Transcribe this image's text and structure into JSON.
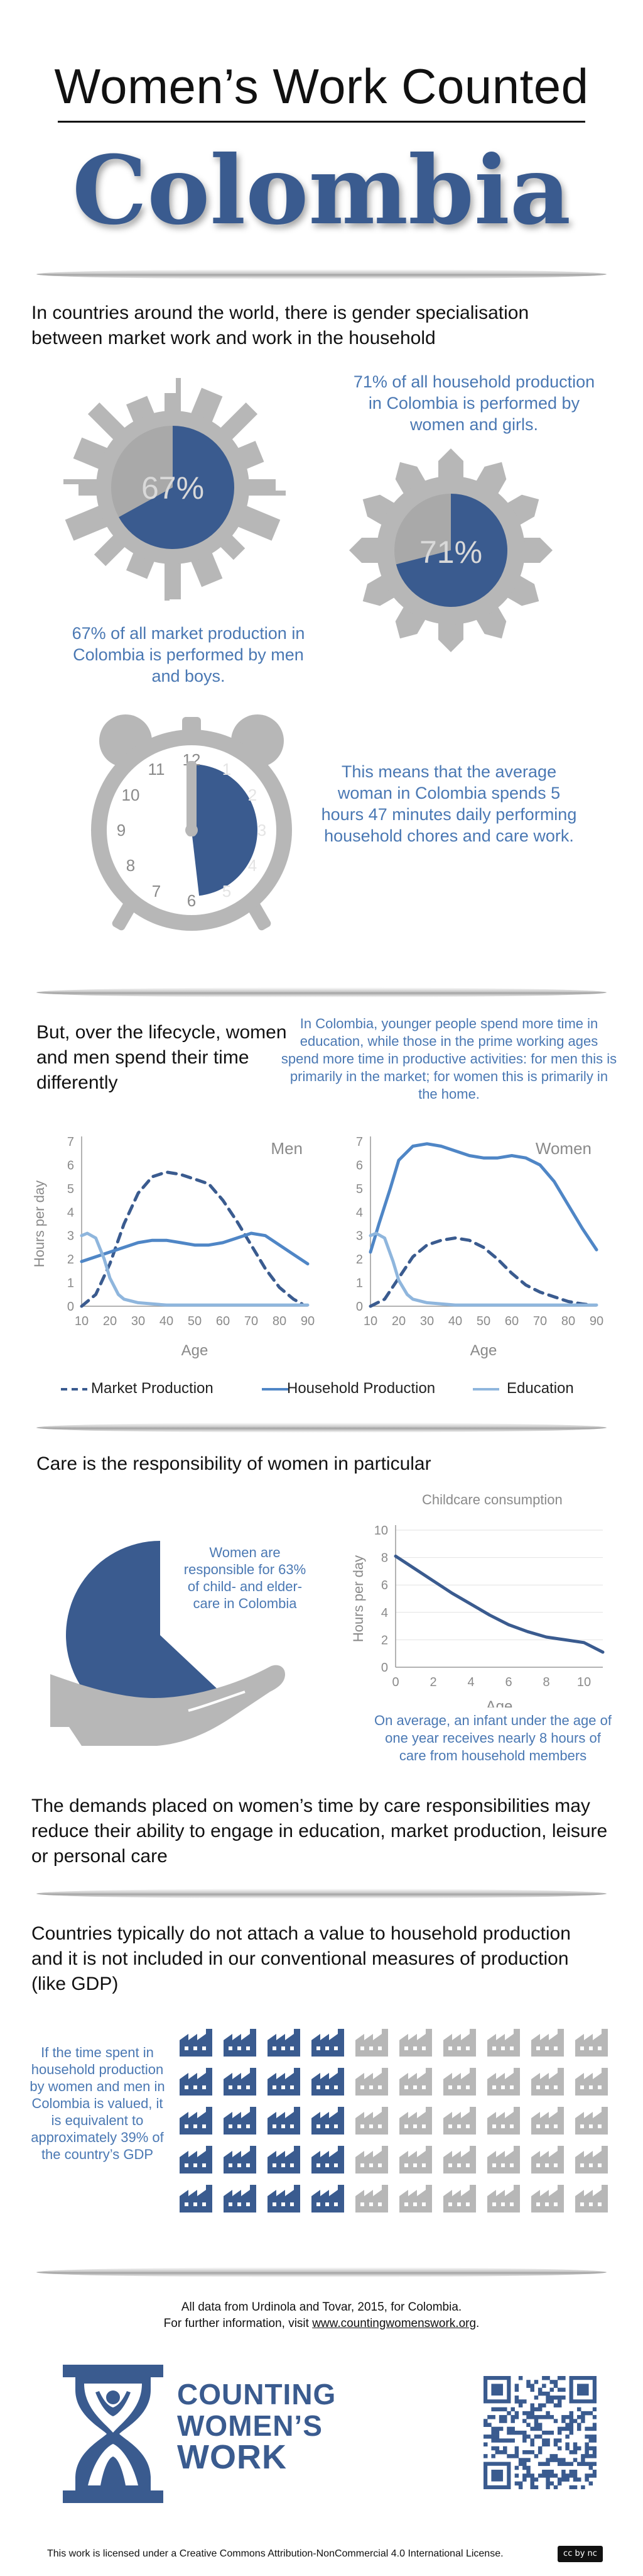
{
  "header": {
    "title": "Women’s Work Counted",
    "country": "Colombia"
  },
  "section1": {
    "intro": "In countries around the world, there is gender specialisation between market work and work in the household",
    "household_caption": "71% of all household production in Colombia is performed by women and girls.",
    "market_caption": "67% of all market production in Colombia is performed by men and boys.",
    "market_pct_label": "67%",
    "household_pct_label": "71%",
    "market_fraction": 0.67,
    "household_fraction": 0.71,
    "clock_caption": "This means that the average woman in Colombia spends 5 hours 47 minutes daily performing household chores and care work.",
    "clock_numbers": [
      "12",
      "1",
      "2",
      "3",
      "4",
      "5",
      "6",
      "7",
      "8",
      "9",
      "10",
      "11"
    ],
    "clock_hours_filled": 5.78
  },
  "section2": {
    "lead": "But, over the lifecycle, women and men spend their time differently",
    "note": "In Colombia, younger people spend more time in education, while those in the prime working ages spend more time in productive activities: for men this is primarily in the market; for women this is primarily in the home.",
    "legend": {
      "market": "Market Production",
      "household": "Household Production",
      "education": "Education"
    }
  },
  "section3": {
    "lead": "Care is the responsibility of women in particular",
    "care_caption": "Women are responsible for 63% of child- and elder-care in Colombia",
    "care_fraction": 0.63,
    "childcare_caption": "On average, an infant under the age of one year receives nearly 8 hours of care from household members",
    "demands": "The demands placed on women’s time by care responsibilities may reduce their ability to engage in education, market production, leisure or personal care"
  },
  "section4": {
    "lead": "Countries typically do not attach a value to household production and it is not included in our conventional measures of production (like GDP)",
    "gdp_caption": "If the time spent in household production by women and men in Colombia is valued, it is equivalent to approximately 39% of the country’s GDP",
    "gdp_fraction": 0.39,
    "icon_count": 50
  },
  "footer": {
    "source_line1": "All data from Urdinola and Tovar, 2015, for Colombia.",
    "source_line2_prefix": "For further information, visit ",
    "source_link": "www.countingwomenswork.org",
    "source_line2_suffix": ".",
    "logo_line1": "COUNTING",
    "logo_line2": "WOMEN’S",
    "logo_line3": "WORK",
    "license": "This work is licensed under a Creative Commons Attribution-NonCommercial 4.0 International License.",
    "cc_badge": "cc by nc"
  },
  "colors": {
    "blue": "#3a5b8f",
    "light_blue": "#4a78b3",
    "line_blue": "#4f86c6",
    "pale_blue": "#8fb6dd",
    "gray": "#b7b7b7"
  },
  "chart_data": [
    {
      "id": "men",
      "type": "line",
      "title": "Men",
      "xlabel": "Age",
      "ylabel": "Hours per day",
      "xlim": [
        10,
        90
      ],
      "ylim": [
        0,
        7
      ],
      "xticks": [
        10,
        20,
        30,
        40,
        50,
        60,
        70,
        80,
        90
      ],
      "yticks": [
        0,
        1,
        2,
        3,
        4,
        5,
        6,
        7
      ],
      "series": [
        {
          "name": "Market Production",
          "style": "dashed",
          "x": [
            10,
            15,
            20,
            25,
            30,
            35,
            40,
            45,
            50,
            55,
            60,
            65,
            70,
            75,
            80,
            85,
            88
          ],
          "y": [
            0,
            0.5,
            1.8,
            3.5,
            4.8,
            5.5,
            5.7,
            5.6,
            5.4,
            5.2,
            4.5,
            3.6,
            2.6,
            1.6,
            0.8,
            0.3,
            0.1
          ]
        },
        {
          "name": "Household Production",
          "style": "solid",
          "x": [
            10,
            15,
            20,
            25,
            30,
            35,
            40,
            45,
            50,
            55,
            60,
            65,
            70,
            75,
            80,
            85,
            90
          ],
          "y": [
            1.9,
            2.1,
            2.3,
            2.5,
            2.7,
            2.8,
            2.8,
            2.7,
            2.6,
            2.6,
            2.7,
            2.9,
            3.1,
            3.0,
            2.6,
            2.2,
            1.8
          ]
        },
        {
          "name": "Education",
          "style": "solid",
          "x": [
            10,
            12,
            15,
            18,
            20,
            23,
            25,
            30,
            35,
            40,
            50,
            60,
            70,
            80,
            90
          ],
          "y": [
            3.0,
            3.1,
            2.9,
            2.0,
            1.2,
            0.5,
            0.3,
            0.15,
            0.1,
            0.05,
            0.05,
            0.05,
            0.05,
            0.05,
            0.05
          ]
        }
      ]
    },
    {
      "id": "women",
      "type": "line",
      "title": "Women",
      "xlabel": "Age",
      "ylabel": "",
      "xlim": [
        10,
        90
      ],
      "ylim": [
        0,
        7
      ],
      "xticks": [
        10,
        20,
        30,
        40,
        50,
        60,
        70,
        80,
        90
      ],
      "yticks": [
        0,
        1,
        2,
        3,
        4,
        5,
        6,
        7
      ],
      "series": [
        {
          "name": "Market Production",
          "style": "dashed",
          "x": [
            10,
            15,
            20,
            25,
            30,
            35,
            40,
            45,
            50,
            55,
            60,
            65,
            70,
            75,
            80,
            85,
            88
          ],
          "y": [
            0,
            0.3,
            1.2,
            2.1,
            2.6,
            2.8,
            2.9,
            2.8,
            2.5,
            2.0,
            1.4,
            0.9,
            0.6,
            0.4,
            0.2,
            0.1,
            0.05
          ]
        },
        {
          "name": "Household Production",
          "style": "solid",
          "x": [
            10,
            13,
            17,
            20,
            25,
            30,
            35,
            40,
            45,
            50,
            55,
            60,
            65,
            70,
            75,
            80,
            85,
            90
          ],
          "y": [
            2.3,
            3.5,
            5.0,
            6.2,
            6.8,
            6.9,
            6.8,
            6.6,
            6.4,
            6.3,
            6.3,
            6.4,
            6.3,
            6.0,
            5.3,
            4.3,
            3.3,
            2.4
          ]
        },
        {
          "name": "Education",
          "style": "solid",
          "x": [
            10,
            12,
            15,
            18,
            20,
            23,
            25,
            30,
            35,
            40,
            50,
            60,
            70,
            80,
            90
          ],
          "y": [
            3.0,
            3.1,
            2.9,
            1.9,
            1.1,
            0.5,
            0.3,
            0.15,
            0.1,
            0.05,
            0.05,
            0.05,
            0.05,
            0.05,
            0.05
          ]
        }
      ]
    },
    {
      "id": "childcare",
      "type": "line",
      "title": "Childcare consumption",
      "xlabel": "Age",
      "ylabel": "Hours per day",
      "xlim": [
        0,
        11
      ],
      "ylim": [
        0,
        10
      ],
      "xticks": [
        0,
        2,
        4,
        6,
        8,
        10
      ],
      "yticks": [
        0,
        2,
        4,
        6,
        8,
        10
      ],
      "series": [
        {
          "name": "Childcare",
          "style": "solid",
          "x": [
            0,
            1,
            2,
            3,
            4,
            5,
            6,
            7,
            8,
            9,
            10,
            11
          ],
          "y": [
            8.1,
            7.2,
            6.3,
            5.4,
            4.6,
            3.8,
            3.1,
            2.6,
            2.2,
            2.0,
            1.8,
            1.1
          ]
        }
      ]
    }
  ]
}
